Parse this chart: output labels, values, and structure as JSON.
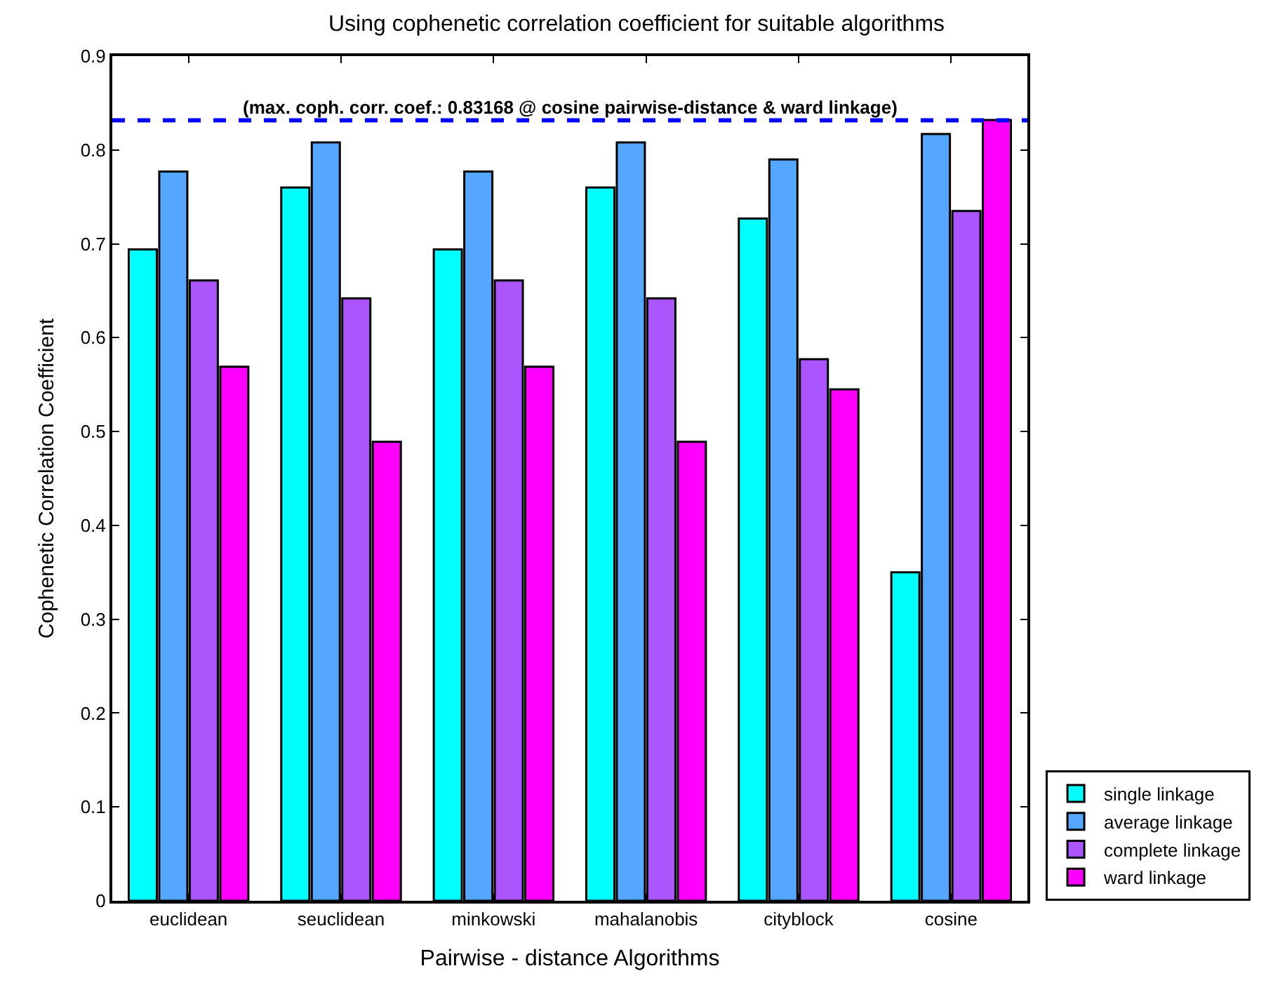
{
  "chart_data": {
    "type": "bar",
    "title": "Using cophenetic correlation coefficient for suitable algorithms",
    "xlabel": "Pairwise - distance Algorithms",
    "ylabel": "Cophenetic Correlation Coefficient",
    "categories": [
      "euclidean",
      "seuclidean",
      "minkowski",
      "mahalanobis",
      "cityblock",
      "cosine"
    ],
    "series": [
      {
        "name": "single linkage",
        "color": "#00ffff",
        "values": [
          0.694,
          0.76,
          0.694,
          0.76,
          0.727,
          0.35
        ]
      },
      {
        "name": "average linkage",
        "color": "#55a6ff",
        "values": [
          0.777,
          0.808,
          0.777,
          0.808,
          0.79,
          0.817
        ]
      },
      {
        "name": "complete linkage",
        "color": "#aa55ff",
        "values": [
          0.661,
          0.642,
          0.661,
          0.642,
          0.577,
          0.735
        ]
      },
      {
        "name": "ward linkage",
        "color": "#ff00ff",
        "values": [
          0.569,
          0.489,
          0.569,
          0.489,
          0.545,
          0.832
        ]
      }
    ],
    "ylim": [
      0,
      0.9
    ],
    "yticks": [
      0,
      0.1,
      0.2,
      0.3,
      0.4,
      0.5,
      0.6,
      0.7,
      0.8,
      0.9
    ],
    "ref_lines": [
      {
        "axis": "y",
        "value": 0.83168,
        "label": "(max. coph. corr. coef.: 0.83168 @ cosine pairwise-distance & ward linkage)",
        "color": "#0000ff",
        "line_style": "dashed"
      }
    ],
    "legend": "bottom right",
    "grid": false
  }
}
